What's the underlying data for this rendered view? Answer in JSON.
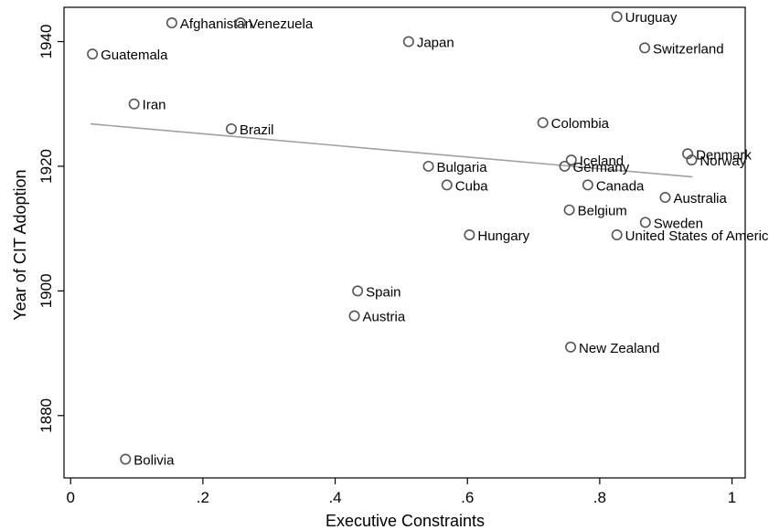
{
  "chart_data": {
    "type": "scatter",
    "xlabel": "Executive Constraints",
    "ylabel": "Year of CIT Adoption",
    "xlim": [
      -0.01,
      1.02
    ],
    "ylim": [
      1870,
      1945.5
    ],
    "x_ticks": [
      0,
      0.2,
      0.4,
      0.6,
      0.8,
      1
    ],
    "x_tick_labels": [
      "0",
      ".2",
      ".4",
      ".6",
      ".8",
      "1"
    ],
    "y_ticks": [
      1880,
      1900,
      1920,
      1940
    ],
    "y_tick_labels": [
      "1880",
      "1900",
      "1920",
      "1940"
    ],
    "grid": false,
    "legend": "none",
    "marker_color": "#555555",
    "fit_line_color": "#a0a0a0",
    "points": [
      {
        "label": "Afghanistan",
        "x": 0.153,
        "y": 1943
      },
      {
        "label": "Venezuela",
        "x": 0.257,
        "y": 1943
      },
      {
        "label": "Uruguay",
        "x": 0.826,
        "y": 1944
      },
      {
        "label": "Japan",
        "x": 0.511,
        "y": 1940
      },
      {
        "label": "Switzerland",
        "x": 0.868,
        "y": 1939
      },
      {
        "label": "Guatemala",
        "x": 0.033,
        "y": 1938
      },
      {
        "label": "Iran",
        "x": 0.096,
        "y": 1930
      },
      {
        "label": "Colombia",
        "x": 0.714,
        "y": 1927
      },
      {
        "label": "Brazil",
        "x": 0.243,
        "y": 1926
      },
      {
        "label": "Denmark",
        "x": 0.933,
        "y": 1922
      },
      {
        "label": "Iceland",
        "x": 0.757,
        "y": 1921
      },
      {
        "label": "Norway",
        "x": 0.939,
        "y": 1921
      },
      {
        "label": "Bulgaria",
        "x": 0.541,
        "y": 1920
      },
      {
        "label": "Germany",
        "x": 0.747,
        "y": 1920
      },
      {
        "label": "Cuba",
        "x": 0.569,
        "y": 1917
      },
      {
        "label": "Canada",
        "x": 0.782,
        "y": 1917
      },
      {
        "label": "Australia",
        "x": 0.899,
        "y": 1915
      },
      {
        "label": "Belgium",
        "x": 0.754,
        "y": 1913
      },
      {
        "label": "Sweden",
        "x": 0.869,
        "y": 1911
      },
      {
        "label": "Hungary",
        "x": 0.603,
        "y": 1909
      },
      {
        "label": "United States of America",
        "x": 0.826,
        "y": 1909
      },
      {
        "label": "Spain",
        "x": 0.434,
        "y": 1900
      },
      {
        "label": "Austria",
        "x": 0.429,
        "y": 1896
      },
      {
        "label": "New Zealand",
        "x": 0.756,
        "y": 1891
      },
      {
        "label": "Bolivia",
        "x": 0.083,
        "y": 1873
      }
    ],
    "fit_line": {
      "x": [
        0.03,
        0.94
      ],
      "y": [
        1926.8,
        1918.3
      ]
    }
  }
}
